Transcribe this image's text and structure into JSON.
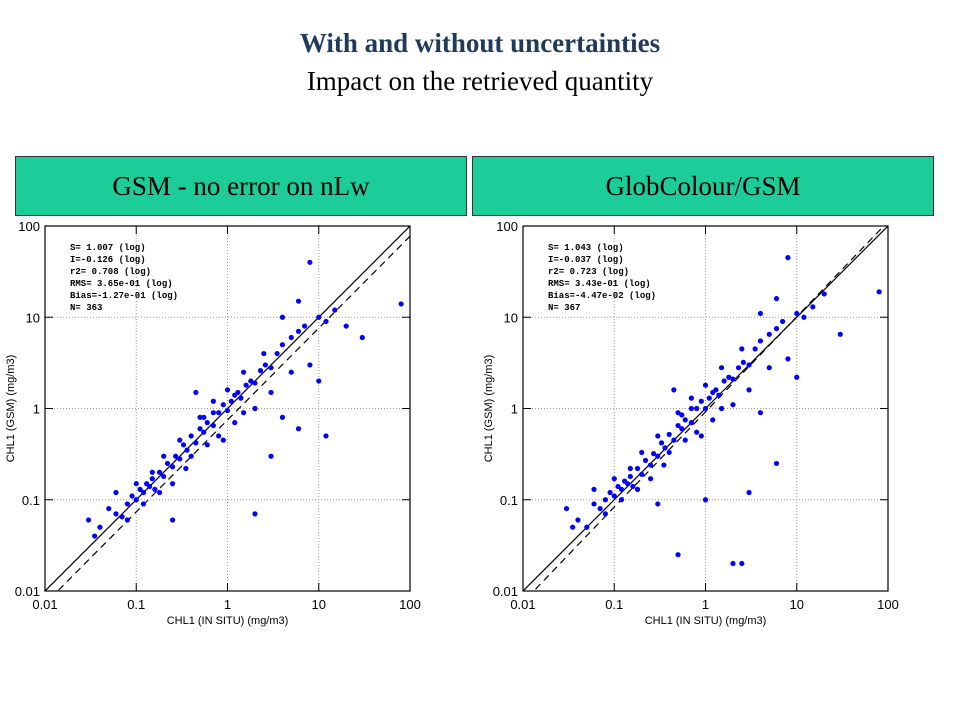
{
  "slide": {
    "title": "With and without uncertainties",
    "subtitle": "Impact on the retrieved quantity"
  },
  "panels": [
    {
      "header": "GSM - no error on nLw"
    },
    {
      "header": "GlobColour/GSM"
    }
  ],
  "chart_data": [
    {
      "type": "scatter",
      "xlabel": "CHL1 (IN SITU) (mg/m3)",
      "ylabel": "CHL1 (GSM) (mg/m3)",
      "xscale": "log",
      "yscale": "log",
      "xlim": [
        0.01,
        100
      ],
      "ylim": [
        0.01,
        100
      ],
      "xticks": [
        "0.01",
        "0.1",
        "1",
        "10",
        "100"
      ],
      "yticks": [
        "0.01",
        "0.1",
        "1",
        "10",
        "100"
      ],
      "grid": true,
      "lines": [
        {
          "style": "solid",
          "slope": 1,
          "intercept": 0
        },
        {
          "style": "dashed",
          "slope": 1.007,
          "intercept": -0.126
        }
      ],
      "stats": [
        "S= 1.007 (log)",
        "I=-0.126 (log)",
        "r2= 0.708 (log)",
        "RMS= 3.65e-01 (log)",
        "Bias=-1.27e-01 (log)",
        "N= 363"
      ],
      "color": "#0000ff",
      "points": [
        [
          0.03,
          0.06
        ],
        [
          0.035,
          0.04
        ],
        [
          0.04,
          0.05
        ],
        [
          0.05,
          0.08
        ],
        [
          0.06,
          0.07
        ],
        [
          0.07,
          0.065
        ],
        [
          0.08,
          0.09
        ],
        [
          0.09,
          0.11
        ],
        [
          0.1,
          0.1
        ],
        [
          0.11,
          0.13
        ],
        [
          0.12,
          0.12
        ],
        [
          0.13,
          0.15
        ],
        [
          0.14,
          0.14
        ],
        [
          0.15,
          0.17
        ],
        [
          0.16,
          0.13
        ],
        [
          0.18,
          0.2
        ],
        [
          0.2,
          0.18
        ],
        [
          0.22,
          0.25
        ],
        [
          0.25,
          0.23
        ],
        [
          0.27,
          0.3
        ],
        [
          0.3,
          0.28
        ],
        [
          0.33,
          0.4
        ],
        [
          0.36,
          0.35
        ],
        [
          0.4,
          0.5
        ],
        [
          0.45,
          0.42
        ],
        [
          0.5,
          0.6
        ],
        [
          0.55,
          0.55
        ],
        [
          0.6,
          0.7
        ],
        [
          0.7,
          0.65
        ],
        [
          0.8,
          0.9
        ],
        [
          0.9,
          1.1
        ],
        [
          1.0,
          0.95
        ],
        [
          1.1,
          1.2
        ],
        [
          1.2,
          1.4
        ],
        [
          1.4,
          1.3
        ],
        [
          1.6,
          1.8
        ],
        [
          1.8,
          2.0
        ],
        [
          2.0,
          1.9
        ],
        [
          2.3,
          2.6
        ],
        [
          2.6,
          3.0
        ],
        [
          3.0,
          2.8
        ],
        [
          3.5,
          4.0
        ],
        [
          4.0,
          5.0
        ],
        [
          5.0,
          6.0
        ],
        [
          6.0,
          7.0
        ],
        [
          7.0,
          8.0
        ],
        [
          8.0,
          40
        ],
        [
          10,
          10
        ],
        [
          12,
          9
        ],
        [
          15,
          12
        ],
        [
          20,
          8
        ],
        [
          30,
          6
        ],
        [
          80,
          14
        ],
        [
          0.12,
          0.09
        ],
        [
          0.15,
          0.2
        ],
        [
          0.18,
          0.12
        ],
        [
          0.2,
          0.3
        ],
        [
          0.25,
          0.15
        ],
        [
          0.3,
          0.45
        ],
        [
          0.35,
          0.22
        ],
        [
          0.4,
          0.3
        ],
        [
          0.5,
          0.8
        ],
        [
          0.6,
          0.4
        ],
        [
          0.7,
          1.2
        ],
        [
          0.8,
          0.5
        ],
        [
          1.0,
          1.6
        ],
        [
          1.2,
          0.7
        ],
        [
          1.5,
          2.5
        ],
        [
          2.0,
          1.0
        ],
        [
          2.5,
          4.0
        ],
        [
          3.0,
          1.5
        ],
        [
          4.0,
          0.8
        ],
        [
          5.0,
          2.5
        ],
        [
          6.0,
          0.6
        ],
        [
          8.0,
          3.0
        ],
        [
          10,
          2.0
        ],
        [
          12,
          0.5
        ],
        [
          2.0,
          0.07
        ],
        [
          3.0,
          0.3
        ],
        [
          0.06,
          0.12
        ],
        [
          0.08,
          0.06
        ],
        [
          0.1,
          0.15
        ],
        [
          0.25,
          0.06
        ],
        [
          0.45,
          1.5
        ],
        [
          0.9,
          0.45
        ],
        [
          1.5,
          0.9
        ],
        [
          4.0,
          10
        ],
        [
          6.0,
          15
        ],
        [
          1.3,
          1.5
        ],
        [
          0.7,
          0.9
        ],
        [
          0.55,
          0.8
        ]
      ]
    },
    {
      "type": "scatter",
      "xlabel": "CHL1 (IN SITU) (mg/m3)",
      "ylabel": "CHL1 (GSM) (mg/m3)",
      "xscale": "log",
      "yscale": "log",
      "xlim": [
        0.01,
        100
      ],
      "ylim": [
        0.01,
        100
      ],
      "xticks": [
        "0.01",
        "0.1",
        "1",
        "10",
        "100"
      ],
      "yticks": [
        "0.01",
        "0.1",
        "1",
        "10",
        "100"
      ],
      "grid": true,
      "lines": [
        {
          "style": "solid",
          "slope": 1,
          "intercept": 0
        },
        {
          "style": "dashed",
          "slope": 1.043,
          "intercept": -0.037
        }
      ],
      "stats": [
        "S= 1.043 (log)",
        "I=-0.037 (log)",
        "r2= 0.723 (log)",
        "RMS= 3.43e-01 (log)",
        "Bias=-4.47e-02 (log)",
        "N= 367"
      ],
      "color": "#0000ff",
      "points": [
        [
          0.03,
          0.08
        ],
        [
          0.035,
          0.05
        ],
        [
          0.04,
          0.06
        ],
        [
          0.05,
          0.05
        ],
        [
          0.06,
          0.09
        ],
        [
          0.07,
          0.08
        ],
        [
          0.08,
          0.1
        ],
        [
          0.09,
          0.12
        ],
        [
          0.1,
          0.11
        ],
        [
          0.11,
          0.14
        ],
        [
          0.12,
          0.13
        ],
        [
          0.13,
          0.16
        ],
        [
          0.14,
          0.15
        ],
        [
          0.15,
          0.18
        ],
        [
          0.16,
          0.14
        ],
        [
          0.18,
          0.22
        ],
        [
          0.2,
          0.19
        ],
        [
          0.22,
          0.27
        ],
        [
          0.25,
          0.24
        ],
        [
          0.27,
          0.32
        ],
        [
          0.3,
          0.3
        ],
        [
          0.33,
          0.42
        ],
        [
          0.36,
          0.37
        ],
        [
          0.4,
          0.52
        ],
        [
          0.45,
          0.45
        ],
        [
          0.5,
          0.65
        ],
        [
          0.55,
          0.6
        ],
        [
          0.6,
          0.75
        ],
        [
          0.7,
          0.7
        ],
        [
          0.8,
          1.0
        ],
        [
          0.9,
          1.2
        ],
        [
          1.0,
          1.0
        ],
        [
          1.1,
          1.3
        ],
        [
          1.2,
          1.5
        ],
        [
          1.4,
          1.4
        ],
        [
          1.6,
          2.0
        ],
        [
          1.8,
          2.2
        ],
        [
          2.0,
          2.1
        ],
        [
          2.3,
          2.8
        ],
        [
          2.6,
          3.2
        ],
        [
          3.0,
          3.0
        ],
        [
          3.5,
          4.5
        ],
        [
          4.0,
          5.5
        ],
        [
          5.0,
          6.5
        ],
        [
          6.0,
          7.5
        ],
        [
          7.0,
          9.0
        ],
        [
          8.0,
          45
        ],
        [
          10,
          11
        ],
        [
          12,
          10
        ],
        [
          15,
          13
        ],
        [
          20,
          18
        ],
        [
          30,
          6.5
        ],
        [
          80,
          19
        ],
        [
          0.12,
          0.1
        ],
        [
          0.15,
          0.22
        ],
        [
          0.18,
          0.13
        ],
        [
          0.2,
          0.33
        ],
        [
          0.25,
          0.17
        ],
        [
          0.3,
          0.5
        ],
        [
          0.35,
          0.24
        ],
        [
          0.4,
          0.33
        ],
        [
          0.5,
          0.9
        ],
        [
          0.6,
          0.45
        ],
        [
          0.7,
          1.3
        ],
        [
          0.8,
          0.55
        ],
        [
          1.0,
          1.8
        ],
        [
          1.2,
          0.75
        ],
        [
          1.5,
          2.8
        ],
        [
          2.0,
          1.1
        ],
        [
          2.5,
          4.5
        ],
        [
          3.0,
          1.6
        ],
        [
          4.0,
          0.9
        ],
        [
          5.0,
          2.8
        ],
        [
          6.0,
          0.25
        ],
        [
          8.0,
          3.5
        ],
        [
          10,
          2.2
        ],
        [
          0.5,
          0.025
        ],
        [
          2.0,
          0.02
        ],
        [
          2.5,
          0.02
        ],
        [
          0.06,
          0.13
        ],
        [
          0.08,
          0.07
        ],
        [
          0.1,
          0.17
        ],
        [
          0.3,
          0.09
        ],
        [
          0.45,
          1.6
        ],
        [
          0.9,
          0.5
        ],
        [
          1.5,
          1.0
        ],
        [
          4.0,
          11
        ],
        [
          6.0,
          16
        ],
        [
          1.3,
          1.6
        ],
        [
          0.7,
          1.0
        ],
        [
          0.55,
          0.85
        ],
        [
          3.0,
          0.12
        ],
        [
          1.0,
          0.1
        ]
      ]
    }
  ]
}
